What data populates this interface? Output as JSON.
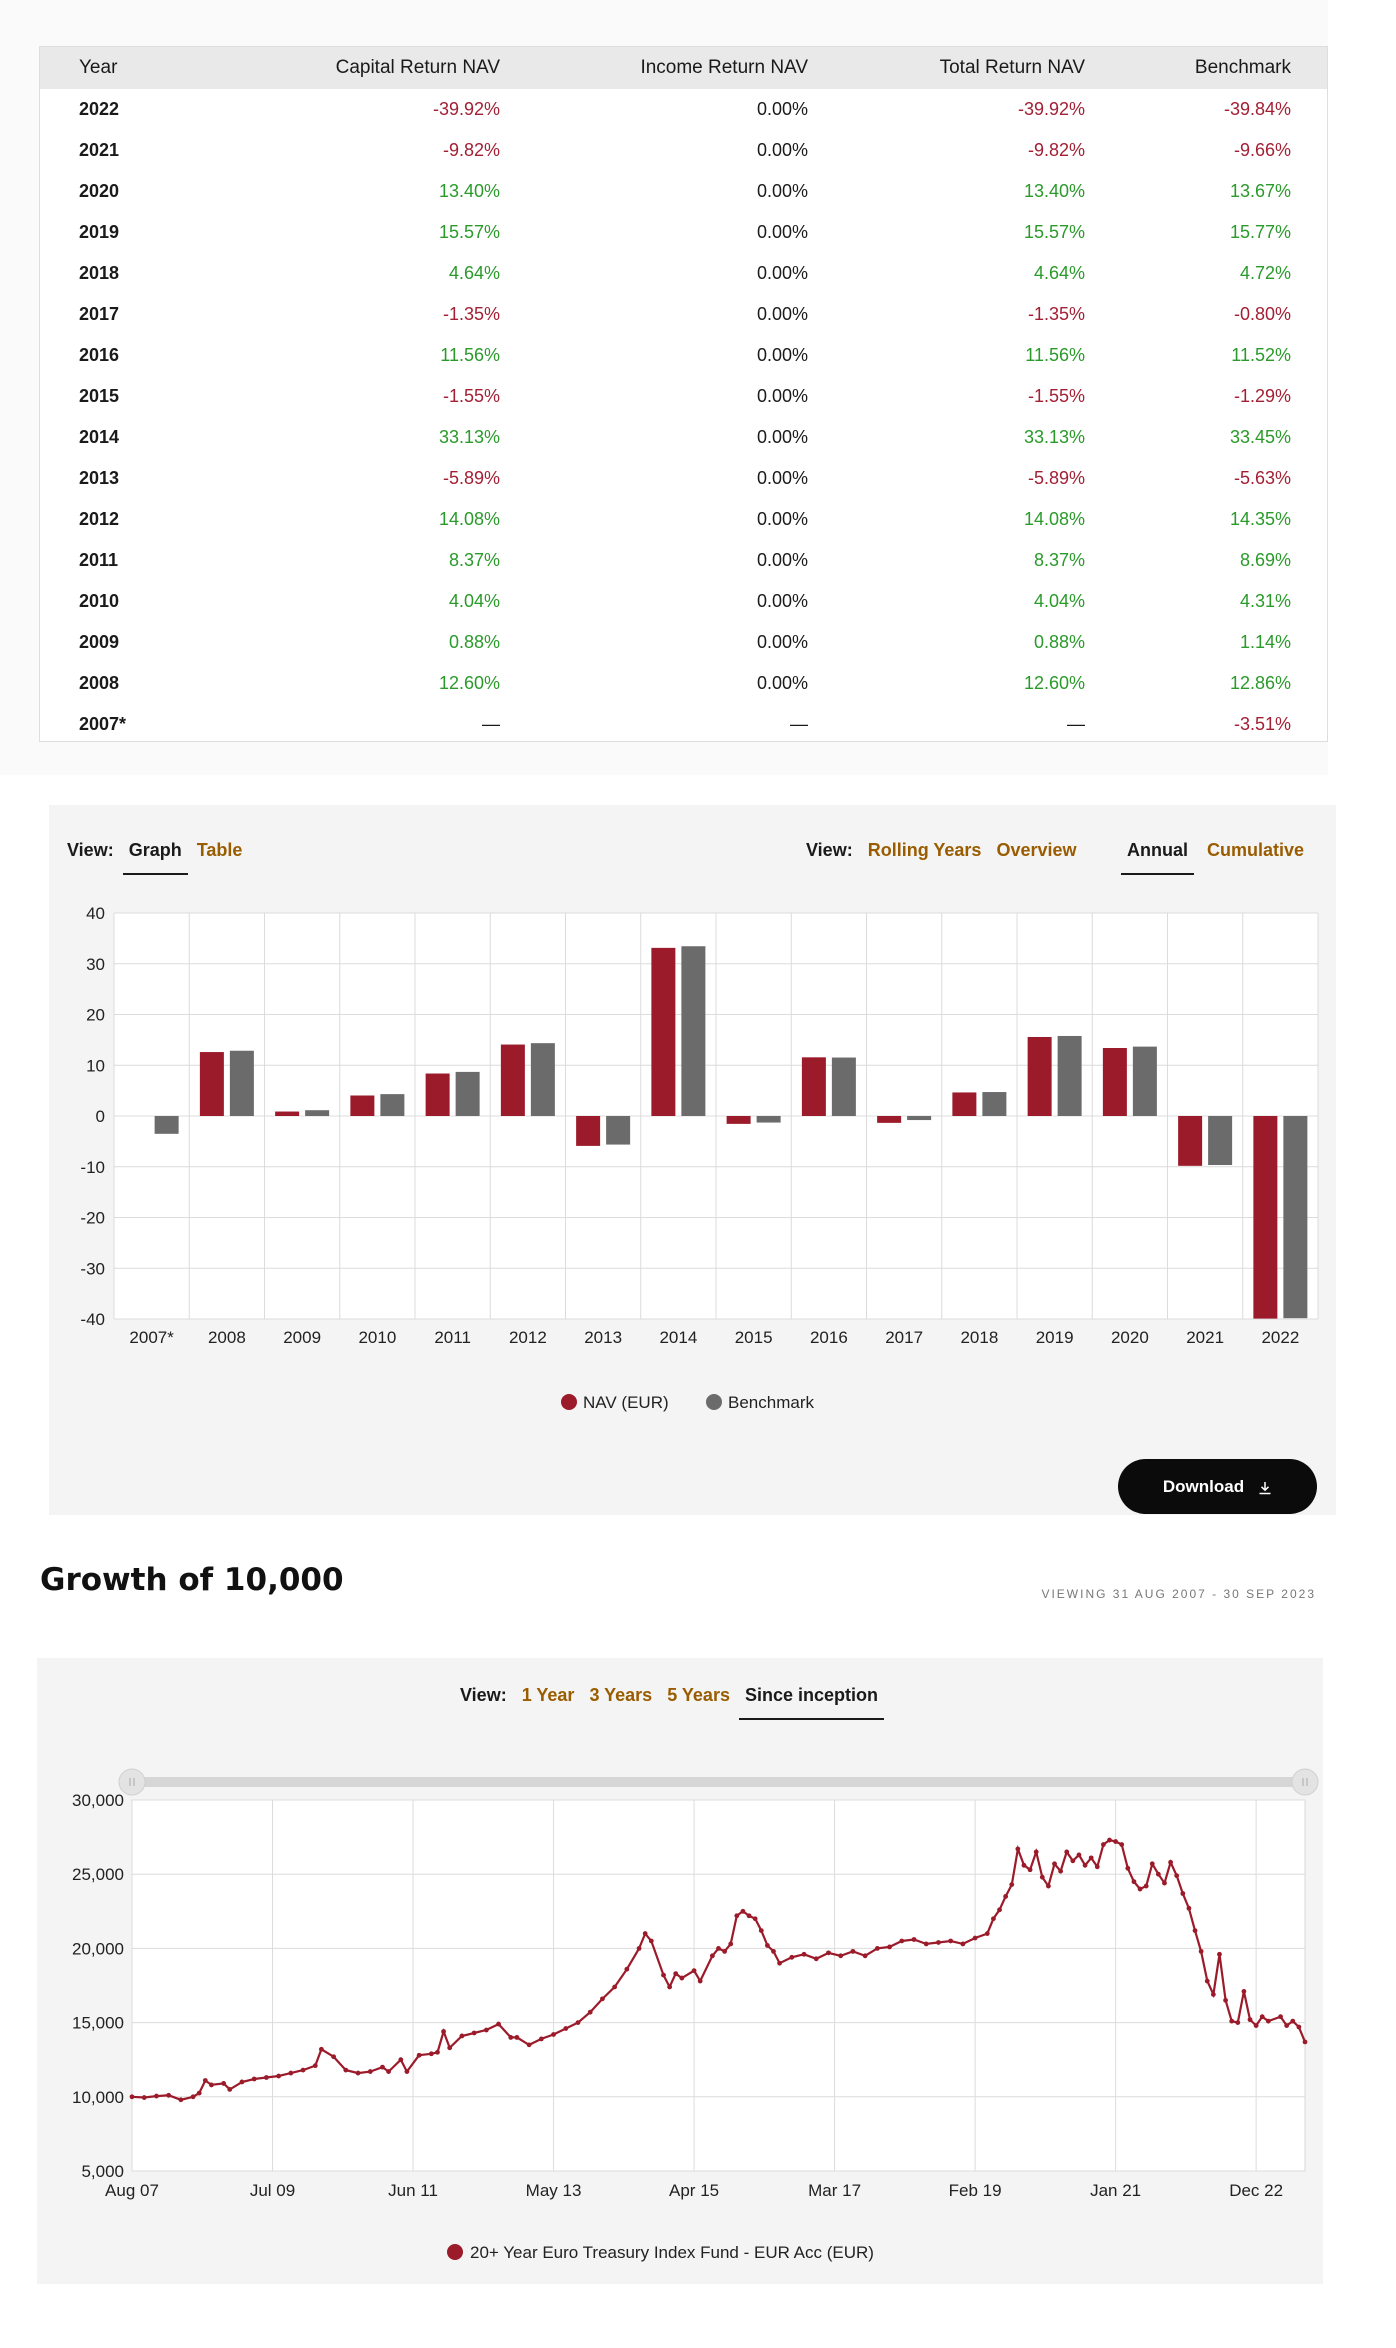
{
  "table": {
    "headers": [
      "Year",
      "Capital Return NAV",
      "Income Return NAV",
      "Total Return NAV",
      "Benchmark"
    ],
    "rows": [
      [
        "2022",
        "-39.92%",
        "0.00%",
        "-39.92%",
        "-39.84%"
      ],
      [
        "2021",
        "-9.82%",
        "0.00%",
        "-9.82%",
        "-9.66%"
      ],
      [
        "2020",
        "13.40%",
        "0.00%",
        "13.40%",
        "13.67%"
      ],
      [
        "2019",
        "15.57%",
        "0.00%",
        "15.57%",
        "15.77%"
      ],
      [
        "2018",
        "4.64%",
        "0.00%",
        "4.64%",
        "4.72%"
      ],
      [
        "2017",
        "-1.35%",
        "0.00%",
        "-1.35%",
        "-0.80%"
      ],
      [
        "2016",
        "11.56%",
        "0.00%",
        "11.56%",
        "11.52%"
      ],
      [
        "2015",
        "-1.55%",
        "0.00%",
        "-1.55%",
        "-1.29%"
      ],
      [
        "2014",
        "33.13%",
        "0.00%",
        "33.13%",
        "33.45%"
      ],
      [
        "2013",
        "-5.89%",
        "0.00%",
        "-5.89%",
        "-5.63%"
      ],
      [
        "2012",
        "14.08%",
        "0.00%",
        "14.08%",
        "14.35%"
      ],
      [
        "2011",
        "8.37%",
        "0.00%",
        "8.37%",
        "8.69%"
      ],
      [
        "2010",
        "4.04%",
        "0.00%",
        "4.04%",
        "4.31%"
      ],
      [
        "2009",
        "0.88%",
        "0.00%",
        "0.88%",
        "1.14%"
      ],
      [
        "2008",
        "12.60%",
        "0.00%",
        "12.60%",
        "12.86%"
      ],
      [
        "2007*",
        "—",
        "—",
        "—",
        "-3.51%"
      ]
    ]
  },
  "bar_view": {
    "view_label_left": "View:",
    "left_options": [
      "Graph",
      "Table"
    ],
    "view_label_right": "View:",
    "right_options": [
      "Rolling Years",
      "Overview"
    ],
    "mode_options": [
      "Annual",
      "Cumulative"
    ],
    "download_label": "Download"
  },
  "growth": {
    "title": "Growth of 10,000",
    "viewing": "VIEWING 31 AUG 2007 - 30 SEP 2023",
    "view_label": "View:",
    "options": [
      "1 Year",
      "3 Years",
      "5 Years",
      "Since inception"
    ]
  },
  "colors": {
    "nav": "#9b1b2a",
    "benchmark": "#6b6b6b",
    "accent": "#9a5c00",
    "positive": "#2a9a2a",
    "negative": "#a31f34"
  },
  "chart_data": [
    {
      "type": "bar",
      "categories": [
        "2007*",
        "2008",
        "2009",
        "2010",
        "2011",
        "2012",
        "2013",
        "2014",
        "2015",
        "2016",
        "2017",
        "2018",
        "2019",
        "2020",
        "2021",
        "2022"
      ],
      "series": [
        {
          "name": "NAV (EUR)",
          "values": [
            null,
            12.6,
            0.88,
            4.04,
            8.37,
            14.08,
            -5.89,
            33.13,
            -1.55,
            11.56,
            -1.35,
            4.64,
            15.57,
            13.4,
            -9.82,
            -39.92
          ]
        },
        {
          "name": "Benchmark",
          "values": [
            -3.51,
            12.86,
            1.14,
            4.31,
            8.69,
            14.35,
            -5.63,
            33.45,
            -1.29,
            11.52,
            -0.8,
            4.72,
            15.77,
            13.67,
            -9.66,
            -39.84
          ]
        }
      ],
      "ylim": [
        -40,
        40
      ],
      "yticks": [
        40,
        30,
        20,
        10,
        0,
        -10,
        -20,
        -30,
        -40
      ],
      "grid": true,
      "legend": "bottom-center"
    },
    {
      "type": "line",
      "x_ticks": [
        "Aug 07",
        "Jul 09",
        "Jun 11",
        "May 13",
        "Apr 15",
        "Mar 17",
        "Feb 19",
        "Jan 21",
        "Dec 22"
      ],
      "x_tick_months": [
        0,
        23,
        46,
        69,
        92,
        115,
        138,
        161,
        184
      ],
      "yticks": [
        "30,000",
        "25,000",
        "20,000",
        "15,000",
        "10,000",
        "5,000"
      ],
      "ytick_values": [
        30000,
        25000,
        20000,
        15000,
        10000,
        5000
      ],
      "ylim": [
        5000,
        30000
      ],
      "series": [
        {
          "name": "20+ Year Euro Treasury Index Fund - EUR Acc (EUR)",
          "points": [
            [
              0,
              10000
            ],
            [
              2,
              9950
            ],
            [
              4,
              10050
            ],
            [
              6,
              10100
            ],
            [
              8,
              9800
            ],
            [
              10,
              10000
            ],
            [
              11,
              10250
            ],
            [
              12,
              11100
            ],
            [
              13,
              10800
            ],
            [
              15,
              10900
            ],
            [
              16,
              10500
            ],
            [
              18,
              11000
            ],
            [
              20,
              11200
            ],
            [
              22,
              11300
            ],
            [
              24,
              11400
            ],
            [
              26,
              11600
            ],
            [
              28,
              11800
            ],
            [
              30,
              12100
            ],
            [
              31,
              13200
            ],
            [
              33,
              12700
            ],
            [
              35,
              11800
            ],
            [
              37,
              11600
            ],
            [
              39,
              11700
            ],
            [
              41,
              12000
            ],
            [
              42,
              11700
            ],
            [
              44,
              12500
            ],
            [
              45,
              11700
            ],
            [
              47,
              12800
            ],
            [
              49,
              12900
            ],
            [
              50,
              13000
            ],
            [
              51,
              14400
            ],
            [
              52,
              13300
            ],
            [
              54,
              14100
            ],
            [
              56,
              14300
            ],
            [
              58,
              14500
            ],
            [
              60,
              14900
            ],
            [
              62,
              14000
            ],
            [
              63,
              14000
            ],
            [
              65,
              13500
            ],
            [
              67,
              13900
            ],
            [
              69,
              14200
            ],
            [
              71,
              14600
            ],
            [
              73,
              15000
            ],
            [
              75,
              15700
            ],
            [
              77,
              16600
            ],
            [
              79,
              17400
            ],
            [
              81,
              18600
            ],
            [
              83,
              20000
            ],
            [
              84,
              21000
            ],
            [
              85,
              20500
            ],
            [
              87,
              18200
            ],
            [
              88,
              17400
            ],
            [
              89,
              18300
            ],
            [
              90,
              18000
            ],
            [
              92,
              18500
            ],
            [
              93,
              17800
            ],
            [
              95,
              19500
            ],
            [
              96,
              20000
            ],
            [
              97,
              19800
            ],
            [
              98,
              20300
            ],
            [
              99,
              22200
            ],
            [
              100,
              22500
            ],
            [
              101,
              22200
            ],
            [
              102,
              22000
            ],
            [
              103,
              21200
            ],
            [
              104,
              20200
            ],
            [
              105,
              19800
            ],
            [
              106,
              19000
            ],
            [
              108,
              19400
            ],
            [
              110,
              19600
            ],
            [
              112,
              19300
            ],
            [
              114,
              19700
            ],
            [
              116,
              19500
            ],
            [
              118,
              19800
            ],
            [
              120,
              19500
            ],
            [
              122,
              20000
            ],
            [
              124,
              20100
            ],
            [
              126,
              20500
            ],
            [
              128,
              20600
            ],
            [
              130,
              20300
            ],
            [
              132,
              20400
            ],
            [
              134,
              20500
            ],
            [
              136,
              20300
            ],
            [
              138,
              20700
            ],
            [
              140,
              21000
            ],
            [
              141,
              22000
            ],
            [
              142,
              22600
            ],
            [
              143,
              23500
            ],
            [
              144,
              24300
            ],
            [
              145,
              26700
            ],
            [
              146,
              25600
            ],
            [
              147,
              25300
            ],
            [
              148,
              26500
            ],
            [
              149,
              24800
            ],
            [
              150,
              24200
            ],
            [
              151,
              25700
            ],
            [
              152,
              25200
            ],
            [
              153,
              26500
            ],
            [
              154,
              25900
            ],
            [
              155,
              26300
            ],
            [
              156,
              25600
            ],
            [
              157,
              26100
            ],
            [
              158,
              25500
            ],
            [
              159,
              27000
            ],
            [
              160,
              27300
            ],
            [
              161,
              27200
            ],
            [
              162,
              27000
            ],
            [
              163,
              25400
            ],
            [
              164,
              24500
            ],
            [
              165,
              24000
            ],
            [
              166,
              24200
            ],
            [
              167,
              25700
            ],
            [
              168,
              25000
            ],
            [
              169,
              24400
            ],
            [
              170,
              25800
            ],
            [
              171,
              24900
            ],
            [
              172,
              23700
            ],
            [
              173,
              22700
            ],
            [
              174,
              21200
            ],
            [
              175,
              19800
            ],
            [
              176,
              17800
            ],
            [
              177,
              16900
            ],
            [
              178,
              19600
            ],
            [
              179,
              16500
            ],
            [
              180,
              15100
            ],
            [
              181,
              15000
            ],
            [
              182,
              17100
            ],
            [
              183,
              15200
            ],
            [
              184,
              14800
            ],
            [
              185,
              15400
            ],
            [
              186,
              15100
            ],
            [
              188,
              15400
            ],
            [
              189,
              14800
            ],
            [
              190,
              15100
            ],
            [
              191,
              14700
            ],
            [
              192,
              13700
            ]
          ]
        }
      ],
      "range_slider": true,
      "legend": "bottom-center"
    }
  ]
}
